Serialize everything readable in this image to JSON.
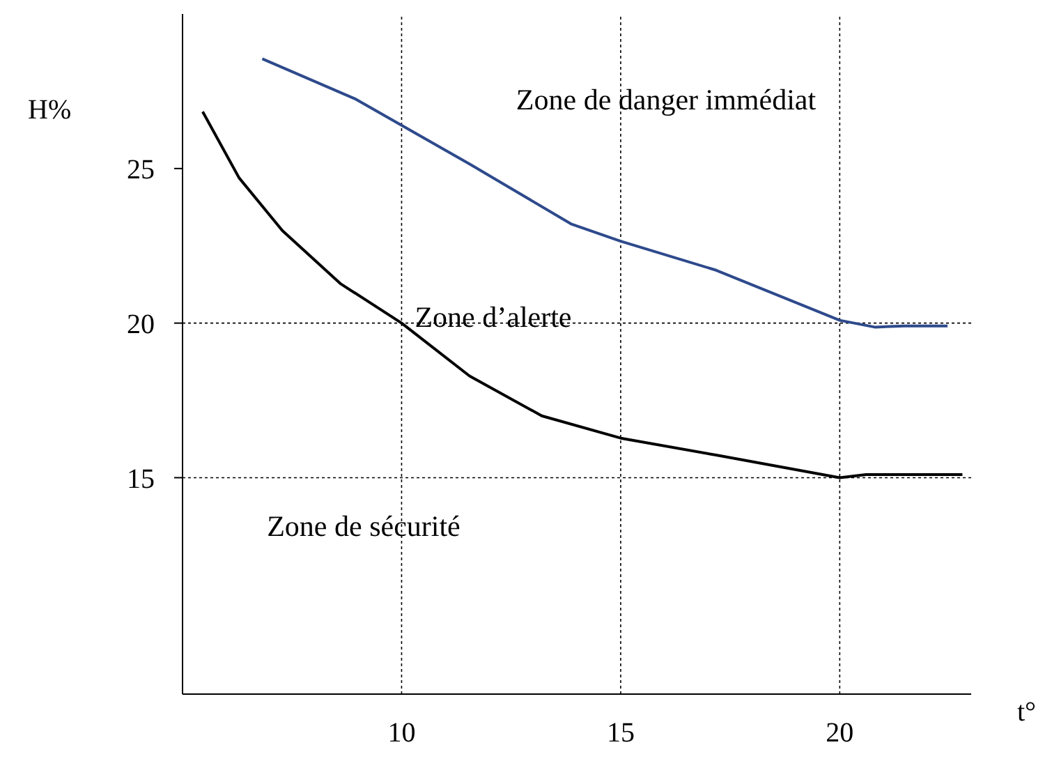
{
  "chart_data": {
    "type": "line",
    "xlabel": "t°",
    "ylabel": "H%",
    "xlim": [
      5,
      23
    ],
    "xticks": [
      10,
      15,
      20
    ],
    "ylim": [
      8,
      30
    ],
    "yticks": [
      15,
      20,
      25
    ],
    "marker": "none",
    "series": [
      {
        "color": "#000000",
        "x": [
          5.46,
          6.29,
          7.28,
          8.6,
          10,
          11.55,
          13.2,
          15,
          17.18,
          20,
          20.6,
          22.8
        ],
        "values": [
          26.84,
          24.7,
          22.99,
          21.28,
          20,
          18.29,
          17,
          16.28,
          15.73,
          15,
          15.1,
          15.1
        ]
      },
      {
        "color": "#2e4a8c",
        "x": [
          6.82,
          8.93,
          11.57,
          13.88,
          15,
          17.18,
          20,
          20.8,
          21.47,
          22.46
        ],
        "values": [
          28.55,
          27.26,
          25.13,
          23.2,
          22.65,
          21.71,
          20.09,
          19.87,
          19.91,
          19.91
        ]
      }
    ],
    "ref_lines": [
      {
        "axis": "y",
        "value": 20,
        "line_style": "dotted",
        "color": "#000000"
      },
      {
        "axis": "y",
        "value": 15,
        "line_style": "dotted",
        "color": "#000000"
      },
      {
        "axis": "x",
        "value": 10,
        "line_style": "dotted",
        "color": "#000000"
      },
      {
        "axis": "x",
        "value": 15,
        "line_style": "dotted",
        "color": "#000000"
      },
      {
        "axis": "x",
        "value": 20,
        "line_style": "dotted",
        "color": "#000000"
      }
    ],
    "annotations": [
      "Zone de danger immédiat",
      "Zone d’alerte",
      "Zone de sécurité"
    ]
  }
}
